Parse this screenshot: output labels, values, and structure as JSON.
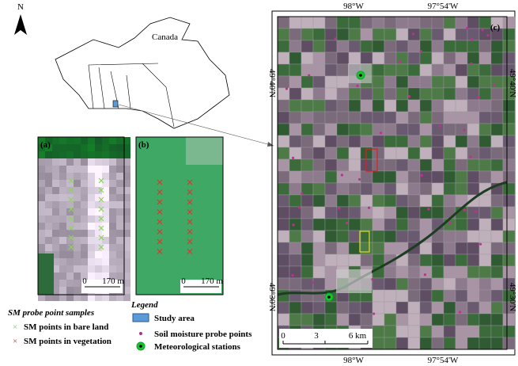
{
  "north_arrow": {
    "label": "N"
  },
  "overview_map": {
    "label": "Canada"
  },
  "panels": [
    {
      "label": "(a)",
      "scale_bar": [
        "0",
        "170 m"
      ]
    },
    {
      "label": "(b)",
      "scale_bar": [
        "0",
        "170 m"
      ]
    },
    {
      "label": "(c)",
      "top_ticks": [
        "98°W",
        "97°54'W"
      ],
      "bottom_ticks": [
        "98°W",
        "97°54'W"
      ],
      "left_ticks": [
        "49°40'N",
        "49°30'N"
      ],
      "right_ticks": [
        "49°40'N",
        "49°30'N"
      ],
      "scale_bar": [
        "0",
        "3",
        "6 km"
      ]
    }
  ],
  "sample_legend": {
    "title": "SM probe point samples",
    "items": [
      "SM points in bare land",
      "SM points in vegetation"
    ]
  },
  "legend": {
    "title": "Legend",
    "items": [
      "Study area",
      "Soil moisture probe points",
      "Meteorological stations"
    ]
  }
}
